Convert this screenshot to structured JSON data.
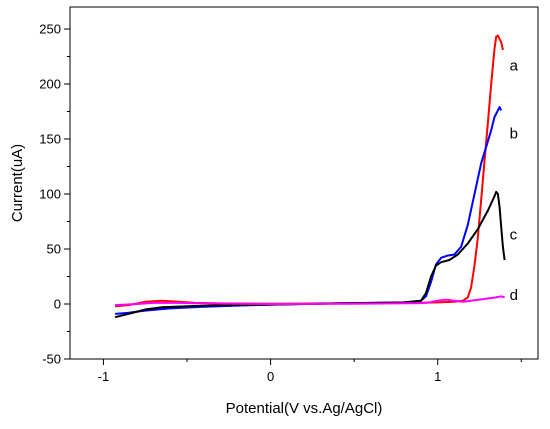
{
  "chart_data": {
    "type": "line",
    "title": "",
    "xlabel": "Potential(V vs.Ag/AgCl)",
    "ylabel": "Current(uA)",
    "xlim": [
      -1.2,
      1.6
    ],
    "ylim": [
      -50,
      270
    ],
    "x_ticks": [
      -1,
      0,
      1
    ],
    "x_tick_labels": [
      "-1",
      "0",
      "1"
    ],
    "y_ticks": [
      -50,
      0,
      50,
      100,
      150,
      200,
      250
    ],
    "y_tick_labels": [
      "-50",
      "0",
      "50",
      "100",
      "150",
      "200",
      "250"
    ],
    "grid": false,
    "legend": "none",
    "series": [
      {
        "name": "a",
        "color": "#ff0000",
        "points": [
          [
            -0.93,
            -2
          ],
          [
            -0.85,
            -1
          ],
          [
            -0.75,
            2
          ],
          [
            -0.65,
            3
          ],
          [
            -0.55,
            2
          ],
          [
            -0.45,
            1
          ],
          [
            -0.3,
            0.5
          ],
          [
            0,
            0.3
          ],
          [
            0.5,
            0.6
          ],
          [
            0.9,
            1
          ],
          [
            1.0,
            1.5
          ],
          [
            1.1,
            2
          ],
          [
            1.15,
            3
          ],
          [
            1.18,
            6
          ],
          [
            1.2,
            15
          ],
          [
            1.22,
            35
          ],
          [
            1.24,
            60
          ],
          [
            1.26,
            95
          ],
          [
            1.28,
            130
          ],
          [
            1.3,
            165
          ],
          [
            1.32,
            200
          ],
          [
            1.34,
            232
          ],
          [
            1.35,
            243
          ],
          [
            1.36,
            244
          ],
          [
            1.38,
            238
          ],
          [
            1.39,
            231
          ]
        ]
      },
      {
        "name": "b",
        "color": "#0000ff",
        "points": [
          [
            -0.93,
            -9
          ],
          [
            -0.85,
            -8
          ],
          [
            -0.75,
            -6
          ],
          [
            -0.6,
            -4
          ],
          [
            -0.4,
            -2.5
          ],
          [
            -0.2,
            -1.5
          ],
          [
            0,
            -0.5
          ],
          [
            0.4,
            0.5
          ],
          [
            0.8,
            1.5
          ],
          [
            0.9,
            3
          ],
          [
            0.93,
            7
          ],
          [
            0.96,
            20
          ],
          [
            0.99,
            36
          ],
          [
            1.02,
            42
          ],
          [
            1.06,
            44
          ],
          [
            1.1,
            45
          ],
          [
            1.14,
            52
          ],
          [
            1.18,
            72
          ],
          [
            1.22,
            100
          ],
          [
            1.26,
            128
          ],
          [
            1.3,
            148
          ],
          [
            1.32,
            158
          ],
          [
            1.34,
            170
          ],
          [
            1.36,
            176
          ],
          [
            1.37,
            179
          ],
          [
            1.38,
            176
          ]
        ]
      },
      {
        "name": "c",
        "color": "#000000",
        "points": [
          [
            -0.93,
            -12
          ],
          [
            -0.85,
            -9
          ],
          [
            -0.75,
            -5
          ],
          [
            -0.65,
            -3
          ],
          [
            -0.5,
            -2
          ],
          [
            -0.3,
            -1.2
          ],
          [
            0,
            -0.5
          ],
          [
            0.4,
            0.5
          ],
          [
            0.8,
            1.5
          ],
          [
            0.9,
            3
          ],
          [
            0.93,
            10
          ],
          [
            0.96,
            25
          ],
          [
            0.99,
            35
          ],
          [
            1.02,
            38
          ],
          [
            1.07,
            40
          ],
          [
            1.12,
            45
          ],
          [
            1.18,
            55
          ],
          [
            1.24,
            68
          ],
          [
            1.3,
            85
          ],
          [
            1.34,
            98
          ],
          [
            1.35,
            102
          ],
          [
            1.36,
            100
          ],
          [
            1.37,
            88
          ],
          [
            1.38,
            70
          ],
          [
            1.39,
            52
          ],
          [
            1.4,
            40
          ]
        ]
      },
      {
        "name": "d",
        "color": "#ff00ff",
        "points": [
          [
            -0.93,
            -1
          ],
          [
            -0.8,
            0
          ],
          [
            -0.7,
            1
          ],
          [
            -0.55,
            1
          ],
          [
            -0.4,
            0.5
          ],
          [
            0,
            0
          ],
          [
            0.5,
            0.3
          ],
          [
            0.9,
            0.8
          ],
          [
            0.95,
            1.5
          ],
          [
            1.0,
            3
          ],
          [
            1.05,
            4
          ],
          [
            1.1,
            3
          ],
          [
            1.15,
            2
          ],
          [
            1.2,
            3
          ],
          [
            1.25,
            4
          ],
          [
            1.3,
            5
          ],
          [
            1.35,
            6
          ],
          [
            1.38,
            7
          ],
          [
            1.4,
            6
          ]
        ]
      }
    ],
    "annotations": [
      {
        "text": "a",
        "x": 1.43,
        "y": 217
      },
      {
        "text": "b",
        "x": 1.43,
        "y": 155
      },
      {
        "text": "c",
        "x": 1.43,
        "y": 63
      },
      {
        "text": "d",
        "x": 1.43,
        "y": 8
      }
    ]
  }
}
